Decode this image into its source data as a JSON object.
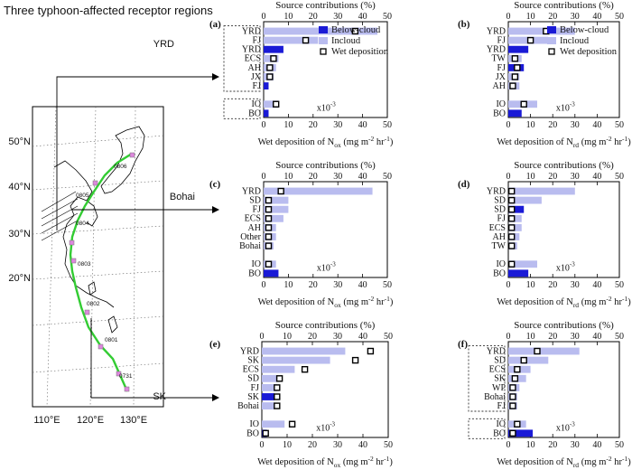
{
  "page_title": "Three typhoon-affected receptor regions",
  "colors": {
    "below": "#1a1ad6",
    "incloud": "#b9bcef",
    "track": "#33cc33",
    "site": "#dd88dd",
    "box_line": "#333333"
  },
  "map": {
    "lat_labels": [
      "50°N",
      "40°N",
      "30°N",
      "20°N"
    ],
    "lon_labels": [
      "110°E",
      "120°E",
      "130°E"
    ],
    "track_labels": [
      "0806",
      "0805",
      "0804",
      "0803",
      "0802",
      "0801",
      "0731"
    ],
    "arrow_labels": [
      "YRD",
      "Bohai",
      "SK"
    ]
  },
  "chart_data": [
    {
      "panel": "(a)",
      "type": "bar",
      "orientation": "horizontal",
      "top_title": "Source contributions (%)",
      "xlim": [
        0,
        50
      ],
      "ticks": [
        0,
        10,
        20,
        30,
        40,
        50
      ],
      "xlabel_pre": "Wet deposition of N",
      "xlabel_sub": "ox",
      "xlabel_post": " (mg m",
      "xlabel_exp1": "-2",
      "xlabel_mid": " hr",
      "xlabel_exp2": "-1",
      "xlabel_end": ")",
      "scale_note": "x10",
      "scale_exp": "-3",
      "legend": [
        "Below-cloud",
        "Incloud",
        "Wet deposition"
      ],
      "categories": [
        "YRD",
        "FJ",
        "YRD",
        "ECS",
        "AH",
        "JX",
        "FJ",
        "IO",
        "BO"
      ],
      "rows": [
        1,
        2,
        3,
        4,
        5,
        6,
        7,
        9,
        10
      ],
      "series": [
        {
          "name": "Below-cloud",
          "values": [
            0,
            0,
            8,
            0,
            0,
            0,
            2,
            0,
            2
          ]
        },
        {
          "name": "Incloud",
          "values": [
            46,
            22,
            0,
            6,
            5,
            4,
            0,
            6,
            0
          ]
        }
      ],
      "wet_deposition": [
        37,
        17,
        0,
        4,
        2.5,
        2.5,
        0,
        5,
        0
      ],
      "group_boxes": [
        [
          1,
          7
        ],
        [
          9,
          10
        ]
      ]
    },
    {
      "panel": "(b)",
      "type": "bar",
      "orientation": "horizontal",
      "top_title": "Source contributions (%)",
      "xlim": [
        0,
        50
      ],
      "ticks": [
        0,
        10,
        20,
        30,
        40,
        50
      ],
      "xlabel_pre": "Wet deposition of N",
      "xlabel_sub": "rd",
      "xlabel_post": " (mg m",
      "xlabel_exp1": "-2",
      "xlabel_mid": " hr",
      "xlabel_exp2": "-1",
      "xlabel_end": ")",
      "scale_note": "x10",
      "scale_exp": "-3",
      "legend": [
        "Below-cloud",
        "Incloud",
        "Wet deposition"
      ],
      "categories": [
        "YRD",
        "FJ",
        "YRD",
        "TW",
        "FJ",
        "JX",
        "AH",
        "IO",
        "BO"
      ],
      "rows": [
        1,
        2,
        3,
        4,
        5,
        6,
        7,
        9,
        10
      ],
      "series": [
        {
          "name": "Below-cloud",
          "values": [
            0,
            0,
            9,
            0,
            7,
            0,
            0,
            0,
            6
          ]
        },
        {
          "name": "Incloud",
          "values": [
            30,
            18,
            0,
            6,
            0,
            5,
            5,
            13,
            0
          ]
        }
      ],
      "wet_deposition": [
        17,
        10,
        0,
        3,
        4,
        3,
        2,
        7,
        0
      ],
      "group_boxes": []
    },
    {
      "panel": "(c)",
      "type": "bar",
      "orientation": "horizontal",
      "top_title": "Source contributions (%)",
      "xlim": [
        0,
        50
      ],
      "ticks": [
        0,
        10,
        20,
        30,
        40,
        50
      ],
      "xlabel_pre": "Wet deposition of N",
      "xlabel_sub": "ox",
      "xlabel_post": " (mg m",
      "xlabel_exp1": "-2",
      "xlabel_mid": " hr",
      "xlabel_exp2": "-1",
      "xlabel_end": ")",
      "scale_note": "x10",
      "scale_exp": "-3",
      "legend": [],
      "categories": [
        "YRD",
        "SD",
        "FJ",
        "ECS",
        "AH",
        "Other",
        "Bohai",
        "IO",
        "BO"
      ],
      "rows": [
        1,
        2,
        3,
        4,
        5,
        6,
        7,
        9,
        10
      ],
      "series": [
        {
          "name": "Below-cloud",
          "values": [
            0,
            0,
            0,
            0,
            0,
            0,
            0,
            0,
            6
          ]
        },
        {
          "name": "Incloud",
          "values": [
            44,
            10,
            10,
            8,
            5,
            5,
            4,
            5,
            0
          ]
        }
      ],
      "wet_deposition": [
        7,
        2,
        2,
        2,
        2,
        2,
        2,
        2,
        0
      ],
      "group_boxes": []
    },
    {
      "panel": "(d)",
      "type": "bar",
      "orientation": "horizontal",
      "top_title": "Source contributions (%)",
      "xlim": [
        0,
        50
      ],
      "ticks": [
        0,
        10,
        20,
        30,
        40,
        50
      ],
      "xlabel_pre": "Wet deposition of N",
      "xlabel_sub": "rd",
      "xlabel_post": " (mg m",
      "xlabel_exp1": "-2",
      "xlabel_mid": " hr",
      "xlabel_exp2": "-1",
      "xlabel_end": ")",
      "scale_note": "x10",
      "scale_exp": "-3",
      "legend": [],
      "categories": [
        "YRD",
        "SD",
        "SD",
        "FJ",
        "ECS",
        "AH",
        "TW",
        "IO",
        "BO"
      ],
      "rows": [
        1,
        2,
        3,
        4,
        5,
        6,
        7,
        9,
        10
      ],
      "series": [
        {
          "name": "Below-cloud",
          "values": [
            0,
            0,
            7,
            0,
            0,
            0,
            0,
            0,
            9
          ]
        },
        {
          "name": "Incloud",
          "values": [
            30,
            15,
            0,
            6,
            6,
            5,
            4,
            13,
            0
          ]
        }
      ],
      "wet_deposition": [
        1.5,
        1.5,
        1.5,
        1.5,
        1.5,
        1.5,
        1.5,
        1.5,
        0
      ],
      "group_boxes": []
    },
    {
      "panel": "(e)",
      "type": "bar",
      "orientation": "horizontal",
      "top_title": "Source contributions  (%)",
      "xlim": [
        0,
        50
      ],
      "ticks": [
        0,
        10,
        20,
        30,
        40,
        50
      ],
      "xlabel_pre": "Wet deposition of N",
      "xlabel_sub": "ox",
      "xlabel_post": " (mg m",
      "xlabel_exp1": "-2",
      "xlabel_mid": " hr",
      "xlabel_exp2": "-1",
      "xlabel_end": ")",
      "scale_note": "x10",
      "scale_exp": "-3",
      "legend": [],
      "categories": [
        "YRD",
        "SK",
        "ECS",
        "SD",
        "FJ",
        "SK",
        "Bohai",
        "IO",
        "BO"
      ],
      "rows": [
        1,
        2,
        3,
        4,
        5,
        6,
        7,
        9,
        10
      ],
      "series": [
        {
          "name": "Below-cloud",
          "values": [
            0,
            0,
            0,
            0,
            0,
            5,
            0,
            0,
            2
          ]
        },
        {
          "name": "Incloud",
          "values": [
            33,
            27,
            13,
            6,
            6,
            0,
            5,
            9,
            0
          ]
        }
      ],
      "wet_deposition": [
        43,
        37,
        17,
        7,
        6,
        6,
        6,
        12,
        1.5
      ],
      "group_boxes": []
    },
    {
      "panel": "(f)",
      "type": "bar",
      "orientation": "horizontal",
      "top_title": "Source contributions  (%)",
      "xlim": [
        0,
        50
      ],
      "ticks": [
        0,
        10,
        20,
        30,
        40,
        50
      ],
      "xlabel_pre": "Wet deposition of N",
      "xlabel_sub": "rd",
      "xlabel_post": " (mg m",
      "xlabel_exp1": "-2",
      "xlabel_mid": " hr",
      "xlabel_exp2": "-1",
      "xlabel_end": ")",
      "scale_note": "x10",
      "scale_exp": "-3",
      "legend": [],
      "categories": [
        "YRD",
        "SD",
        "ECS",
        "SK",
        "WP",
        "Bohai",
        "FJ",
        "IO",
        "BO"
      ],
      "rows": [
        1,
        2,
        3,
        4,
        5,
        6,
        7,
        9,
        10
      ],
      "series": [
        {
          "name": "Below-cloud",
          "values": [
            0,
            0,
            0,
            0,
            0,
            0,
            0,
            0,
            11
          ]
        },
        {
          "name": "Incloud",
          "values": [
            32,
            18,
            10,
            8,
            5,
            4,
            4,
            8,
            0
          ]
        }
      ],
      "wet_deposition": [
        13,
        7,
        4,
        3,
        2,
        2,
        2,
        4,
        2
      ],
      "group_boxes": [
        [
          1,
          7
        ],
        [
          9,
          10
        ]
      ]
    }
  ]
}
